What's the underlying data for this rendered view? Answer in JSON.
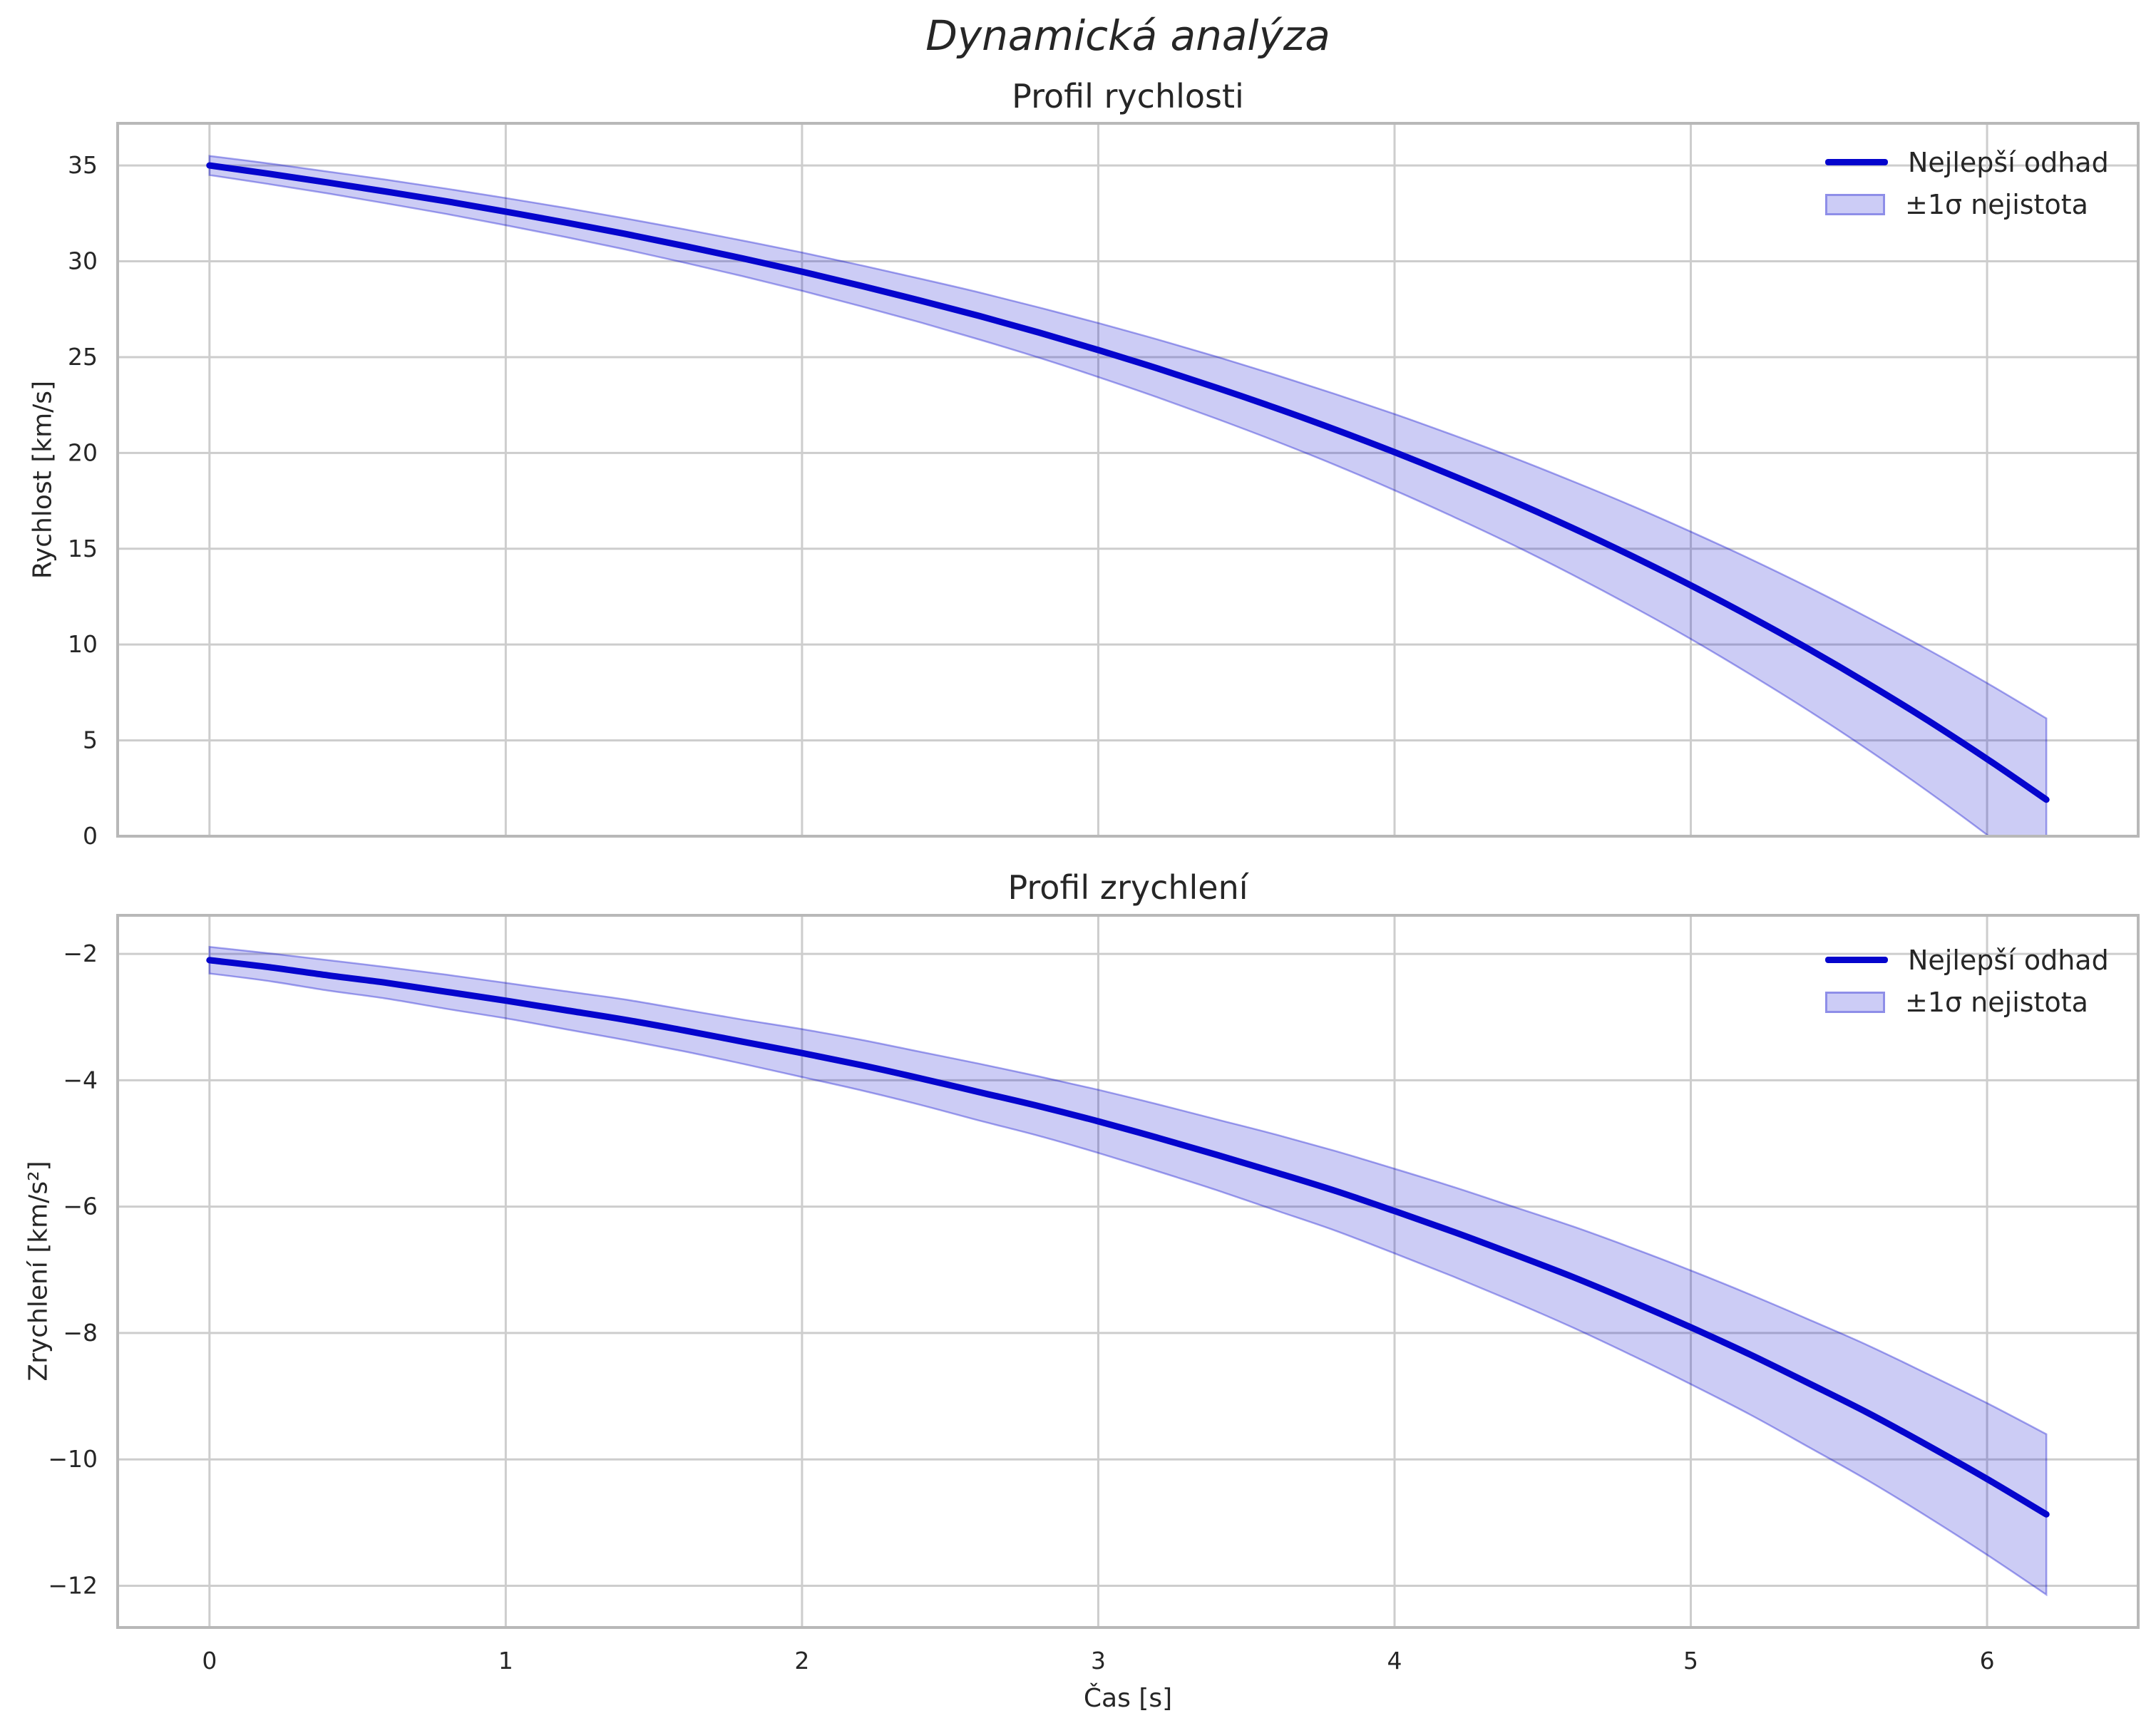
{
  "suptitle": "Dynamická analýza",
  "colors": {
    "line": "#0505cd",
    "band_fill": "rgba(0,0,205,0.20)",
    "band_edge": "rgba(0,0,205,0.35)",
    "legend_patch_fill": "#ccccf6",
    "legend_patch_edge": "#8e8ee8",
    "grid": "#cdcdcd",
    "spine": "#b8b8b8",
    "text": "#262626"
  },
  "chart_data": [
    {
      "type": "line",
      "title": "Profil rychlosti",
      "xlabel": "",
      "ylabel": "Rychlost [km/s]",
      "legend": [
        "Nejlepší odhad",
        "±1σ nejistota"
      ],
      "legend_position": "upper right",
      "grid": true,
      "xlim": [
        -0.31,
        6.51
      ],
      "ylim": [
        0,
        37.2
      ],
      "xticks": [
        0,
        1,
        2,
        3,
        4,
        5,
        6
      ],
      "xticklabels": [
        "0",
        "1",
        "2",
        "3",
        "4",
        "5",
        "6"
      ],
      "show_xticklabels": false,
      "yticks": [
        0,
        5,
        10,
        15,
        20,
        25,
        30,
        35
      ],
      "yticklabels": [
        "0",
        "5",
        "10",
        "15",
        "20",
        "25",
        "30",
        "35"
      ],
      "x": [
        0,
        0.2,
        0.4,
        0.6,
        0.8,
        1,
        1.2,
        1.4,
        1.6,
        1.8,
        2,
        2.2,
        2.4,
        2.6,
        2.8,
        3,
        3.2,
        3.4,
        3.6,
        3.8,
        4,
        4.2,
        4.4,
        4.6,
        4.8,
        5,
        5.2,
        5.4,
        5.6,
        5.8,
        6,
        6.2
      ],
      "series": [
        {
          "name": "Nejlepší odhad",
          "values": [
            35.0,
            34.57,
            34.11,
            33.63,
            33.13,
            32.59,
            32.03,
            31.44,
            30.81,
            30.15,
            29.46,
            28.72,
            27.95,
            27.14,
            26.28,
            25.37,
            24.41,
            23.4,
            22.34,
            21.22,
            20.04,
            18.79,
            17.48,
            16.09,
            14.63,
            13.09,
            11.46,
            9.75,
            7.94,
            6.04,
            4.03,
            1.91
          ]
        },
        {
          "name": "+1σ",
          "values": [
            35.5,
            35.11,
            34.68,
            34.25,
            33.79,
            33.3,
            32.79,
            32.25,
            31.68,
            31.08,
            30.46,
            29.79,
            29.09,
            28.37,
            27.59,
            26.78,
            25.92,
            25.02,
            24.07,
            23.07,
            22.03,
            20.92,
            19.76,
            18.53,
            17.25,
            15.89,
            14.47,
            12.97,
            11.39,
            9.74,
            7.99,
            6.15
          ]
        },
        {
          "name": "-1σ",
          "values": [
            34.5,
            34.03,
            33.54,
            33.01,
            32.47,
            31.88,
            31.27,
            30.63,
            29.94,
            29.22,
            28.46,
            27.65,
            26.81,
            25.91,
            24.97,
            23.96,
            22.9,
            21.78,
            20.61,
            19.37,
            18.05,
            16.66,
            15.2,
            13.65,
            12.01,
            10.29,
            8.45,
            6.53,
            4.49,
            2.34,
            0.07,
            -2.33
          ]
        }
      ]
    },
    {
      "type": "line",
      "title": "Profil zrychlení",
      "xlabel": "Čas [s]",
      "ylabel": "Zrychlení [km/s²]",
      "legend": [
        "Nejlepší odhad",
        "±1σ nejistota"
      ],
      "legend_position": "upper right",
      "grid": true,
      "xlim": [
        -0.31,
        6.51
      ],
      "ylim": [
        -12.66,
        -1.39
      ],
      "xticks": [
        0,
        1,
        2,
        3,
        4,
        5,
        6
      ],
      "xticklabels": [
        "0",
        "1",
        "2",
        "3",
        "4",
        "5",
        "6"
      ],
      "show_xticklabels": true,
      "yticks": [
        -2,
        -4,
        -6,
        -8,
        -10,
        -12
      ],
      "yticklabels": [
        "−2",
        "−4",
        "−6",
        "−8",
        "−10",
        "−12"
      ],
      "x": [
        0,
        0.2,
        0.4,
        0.6,
        0.8,
        1,
        1.2,
        1.4,
        1.6,
        1.8,
        2,
        2.2,
        2.4,
        2.6,
        2.8,
        3,
        3.2,
        3.4,
        3.6,
        3.8,
        4,
        4.2,
        4.4,
        4.6,
        4.8,
        5,
        5.2,
        5.4,
        5.6,
        5.8,
        6,
        6.2
      ],
      "series": [
        {
          "name": "Nejlepší odhad",
          "values": [
            -2.1,
            -2.21,
            -2.34,
            -2.46,
            -2.6,
            -2.74,
            -2.89,
            -3.04,
            -3.21,
            -3.39,
            -3.57,
            -3.76,
            -3.97,
            -4.19,
            -4.41,
            -4.65,
            -4.91,
            -5.18,
            -5.46,
            -5.75,
            -6.07,
            -6.4,
            -6.75,
            -7.11,
            -7.5,
            -7.91,
            -8.34,
            -8.8,
            -9.27,
            -9.78,
            -10.31,
            -10.87
          ]
        },
        {
          "name": "+1σ",
          "values": [
            -1.89,
            -1.99,
            -2.1,
            -2.21,
            -2.33,
            -2.46,
            -2.59,
            -2.72,
            -2.88,
            -3.04,
            -3.19,
            -3.36,
            -3.55,
            -3.74,
            -3.94,
            -4.15,
            -4.38,
            -4.62,
            -4.86,
            -5.12,
            -5.4,
            -5.69,
            -6.0,
            -6.31,
            -6.65,
            -7.01,
            -7.39,
            -7.79,
            -8.2,
            -8.65,
            -9.11,
            -9.6
          ]
        },
        {
          "name": "-1σ",
          "values": [
            -2.31,
            -2.43,
            -2.58,
            -2.71,
            -2.87,
            -3.02,
            -3.19,
            -3.36,
            -3.54,
            -3.74,
            -3.95,
            -4.16,
            -4.39,
            -4.64,
            -4.88,
            -5.15,
            -5.44,
            -5.74,
            -6.06,
            -6.38,
            -6.74,
            -7.11,
            -7.5,
            -7.91,
            -8.35,
            -8.81,
            -9.29,
            -9.81,
            -10.34,
            -10.91,
            -11.51,
            -12.14
          ]
        }
      ]
    }
  ]
}
